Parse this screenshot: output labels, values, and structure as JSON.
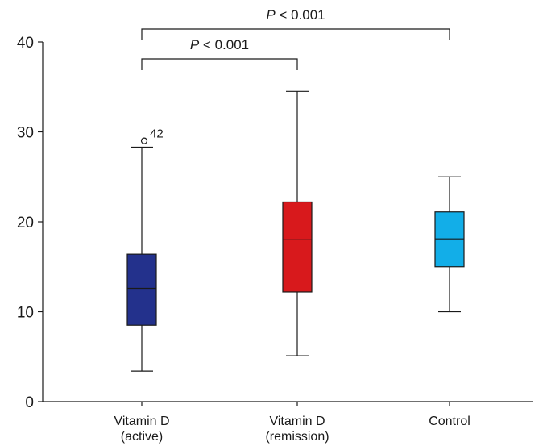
{
  "chart_data": {
    "type": "box",
    "title": "",
    "xlabel": "",
    "ylabel": "",
    "ylim": [
      0,
      40
    ],
    "yticks": [
      0,
      10,
      20,
      30,
      40
    ],
    "grid": false,
    "categories": [
      {
        "line1": "Vitamin D",
        "line2": "(active)"
      },
      {
        "line1": "Vitamin D",
        "line2": "(remission)"
      },
      {
        "line1": "Control",
        "line2": ""
      }
    ],
    "series": [
      {
        "category": "Vitamin D (active)",
        "min": 3.4,
        "q1": 8.5,
        "median": 12.6,
        "q3": 16.4,
        "max": 28.3,
        "color": "#23318c",
        "outliers": [
          {
            "value": 29.0,
            "label": "42"
          }
        ]
      },
      {
        "category": "Vitamin D (remission)",
        "min": 5.1,
        "q1": 12.2,
        "median": 18.0,
        "q3": 22.2,
        "max": 34.5,
        "color": "#d8191c",
        "outliers": []
      },
      {
        "category": "Control",
        "min": 10.0,
        "q1": 15.0,
        "median": 18.1,
        "q3": 21.1,
        "max": 25.0,
        "color": "#12aee8",
        "outliers": []
      }
    ],
    "significance": [
      {
        "from": 0,
        "to": 2,
        "italic": "P",
        "text": " < 0.001"
      },
      {
        "from": 0,
        "to": 1,
        "italic": "P",
        "text": " < 0.001"
      }
    ]
  }
}
